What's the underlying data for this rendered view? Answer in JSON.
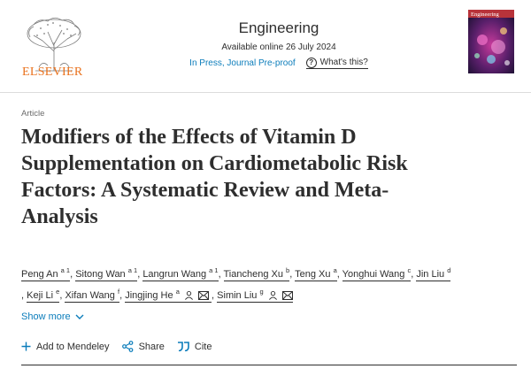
{
  "publisher": {
    "name": "ELSEVIER",
    "logo_icon": "elsevier-tree-icon"
  },
  "journal": {
    "title": "Engineering",
    "availability": "Available online 26 July 2024",
    "status": "In Press, Journal Pre-proof",
    "whats_this": "What's this?",
    "cover_title": "Engineering"
  },
  "article": {
    "type": "Article",
    "title_lines": [
      "Modifiers of the Effects of Vitamin D",
      "Supplementation on Cardiometabolic Risk",
      "Factors: A Systematic Review and Meta-",
      "Analysis"
    ]
  },
  "authors": [
    {
      "name": "Peng An",
      "sup": "a 1"
    },
    {
      "name": "Sitong Wan",
      "sup": "a 1"
    },
    {
      "name": "Langrun Wang",
      "sup": "a 1"
    },
    {
      "name": "Tiancheng Xu",
      "sup": "b"
    },
    {
      "name": "Teng Xu",
      "sup": "a"
    },
    {
      "name": "Yonghui Wang",
      "sup": "c"
    },
    {
      "name": "Jin Liu",
      "sup": "d"
    },
    {
      "name": "Keji Li",
      "sup": "e"
    },
    {
      "name": "Xifan Wang",
      "sup": "f"
    },
    {
      "name": "Jingjing He",
      "sup": "a"
    },
    {
      "name": "Simin Liu",
      "sup": "g"
    }
  ],
  "show_more": "Show more",
  "actions": {
    "mendeley": "Add to Mendeley",
    "share": "Share",
    "cite": "Cite"
  },
  "colors": {
    "accent": "#0c7dbb",
    "brand": "#e9711c",
    "text": "#2e2e2e"
  }
}
